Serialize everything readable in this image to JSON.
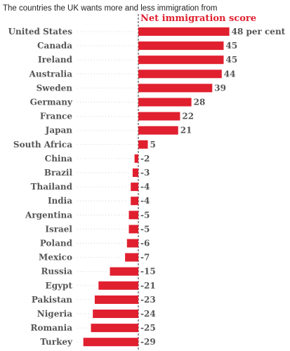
{
  "chart_data": {
    "type": "bar",
    "orientation": "horizontal",
    "title": "The countries the UK wants more and less immigration from",
    "series_title": "Net immigration score",
    "bar_color": "#e0202f",
    "axis_line": "dashed vertical line at zero",
    "categories": [
      "United States",
      "Canada",
      "Ireland",
      "Australia",
      "Sweden",
      "Germany",
      "France",
      "Japan",
      "South Africa",
      "China",
      "Brazil",
      "Thailand",
      "India",
      "Argentina",
      "Israel",
      "Poland",
      "Mexico",
      "Russia",
      "Egypt",
      "Pakistan",
      "Nigeria",
      "Romania",
      "Turkey"
    ],
    "values": [
      48,
      45,
      45,
      44,
      39,
      28,
      22,
      21,
      5,
      -2,
      -3,
      -4,
      -4,
      -5,
      -5,
      -6,
      -7,
      -15,
      -21,
      -23,
      -24,
      -25,
      -29
    ],
    "value_labels": [
      "48 per cent",
      "45",
      "45",
      "44",
      "39",
      "28",
      "22",
      "21",
      "5",
      "-2",
      "-3",
      "-4",
      "-4",
      "-5",
      "-5",
      "-6",
      "-7",
      "-15",
      "-21",
      "-23",
      "-24",
      "-25",
      "-29"
    ]
  }
}
